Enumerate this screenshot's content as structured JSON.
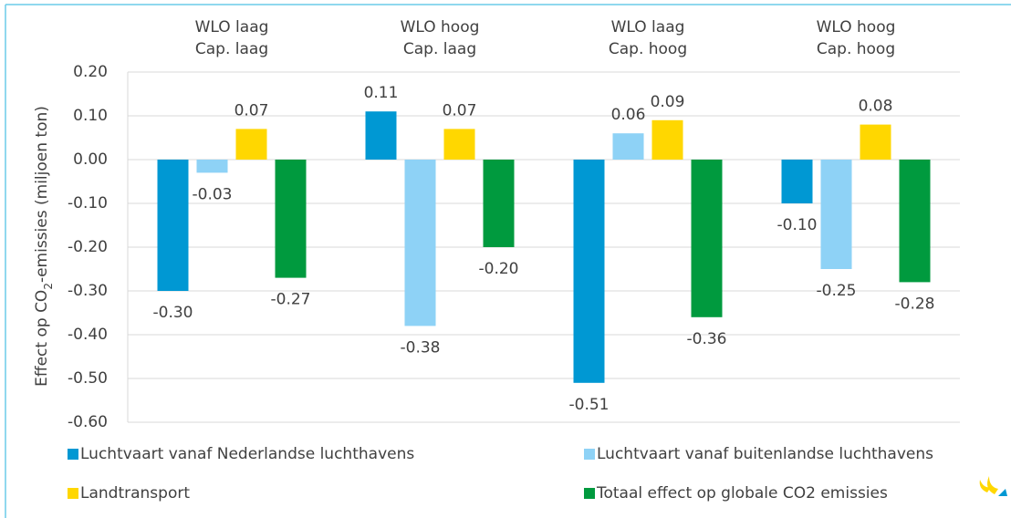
{
  "chart_data": {
    "type": "bar",
    "categories": [
      [
        "WLO laag",
        "Cap. laag"
      ],
      [
        "WLO hoog",
        "Cap. laag"
      ],
      [
        "WLO laag",
        "Cap. hoog"
      ],
      [
        "WLO hoog",
        "Cap. hoog"
      ]
    ],
    "y_label": [
      "Effect op CO",
      "2",
      "-emissies (miljoen ton)"
    ],
    "series": [
      {
        "name": "Luchtvaart vanaf Nederlandse luchthavens",
        "color": "#0098d3",
        "values": [
          -0.3,
          0.11,
          -0.51,
          -0.1
        ],
        "value_labels": [
          "-0.30",
          "0.11",
          "-0.51",
          "-0.10"
        ]
      },
      {
        "name": "Luchtvaart vanaf buitenlandse luchthavens",
        "color": "#8ed2f6",
        "values": [
          -0.03,
          -0.38,
          0.06,
          -0.25
        ],
        "value_labels": [
          "-0.03",
          "-0.38",
          "0.06",
          "-0.25"
        ]
      },
      {
        "name": "Landtransport",
        "color": "#ffd700",
        "values": [
          0.07,
          0.07,
          0.09,
          0.08
        ],
        "value_labels": [
          "0.07",
          "0.07",
          "0.09",
          "0.08"
        ]
      },
      {
        "name": "Totaal effect op globale CO2 emissies",
        "color": "#009a3e",
        "values": [
          -0.27,
          -0.2,
          -0.36,
          -0.28
        ],
        "value_labels": [
          "-0.27",
          "-0.20",
          "-0.36",
          "-0.28"
        ]
      }
    ],
    "ylim": [
      -0.6,
      0.2
    ],
    "yticks": [
      {
        "value": 0.2,
        "label": "0.20"
      },
      {
        "value": 0.1,
        "label": "0.10"
      },
      {
        "value": 0,
        "label": "0.00"
      },
      {
        "value": -0.1,
        "label": "-0.10"
      },
      {
        "value": -0.2,
        "label": "-0.20"
      },
      {
        "value": -0.3,
        "label": "-0.30"
      },
      {
        "value": -0.4,
        "label": "-0.40"
      },
      {
        "value": -0.5,
        "label": "-0.50"
      },
      {
        "value": -0.6,
        "label": "-0.60"
      }
    ],
    "grid": true
  }
}
